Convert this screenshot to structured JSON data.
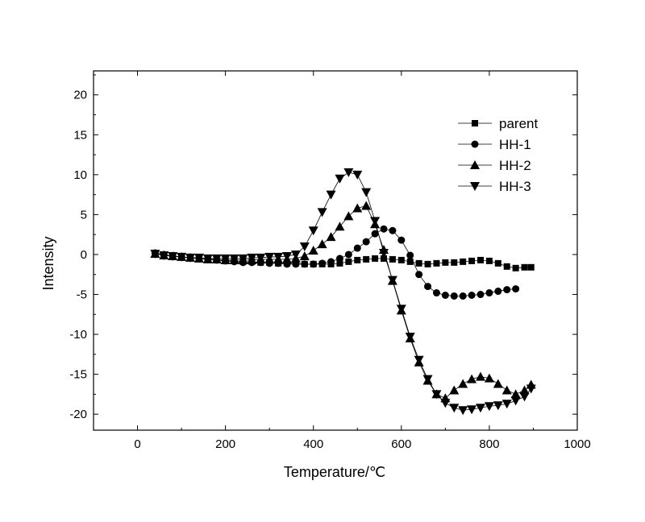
{
  "chart_data": {
    "type": "line",
    "title": "",
    "xlabel": "Temperature/℃",
    "ylabel": "Intensity",
    "xlim": [
      -100,
      1000
    ],
    "ylim": [
      -22,
      23
    ],
    "xticks": [
      0,
      200,
      400,
      600,
      800,
      1000
    ],
    "yticks": [
      -20,
      -15,
      -10,
      -5,
      0,
      5,
      10,
      15,
      20
    ],
    "xtick_labels": [
      "0",
      "200",
      "400",
      "600",
      "800",
      "1000"
    ],
    "ytick_labels": [
      "-20",
      "-15",
      "-10",
      "-5",
      "0",
      "5",
      "10",
      "15",
      "20"
    ],
    "grid": false,
    "legend_position": "top-right",
    "series": [
      {
        "name": "parent",
        "marker": "square",
        "x": [
          40,
          60,
          80,
          100,
          120,
          140,
          160,
          180,
          200,
          220,
          240,
          260,
          280,
          300,
          320,
          340,
          360,
          380,
          400,
          420,
          440,
          460,
          480,
          500,
          520,
          540,
          560,
          580,
          600,
          620,
          640,
          660,
          680,
          700,
          720,
          740,
          760,
          780,
          800,
          820,
          840,
          860,
          880,
          895
        ],
        "y": [
          0.1,
          -0.1,
          -0.2,
          -0.3,
          -0.4,
          -0.5,
          -0.6,
          -0.7,
          -0.8,
          -0.8,
          -0.9,
          -0.9,
          -1.0,
          -1.0,
          -1.1,
          -1.1,
          -1.1,
          -1.2,
          -1.2,
          -1.2,
          -1.2,
          -1.1,
          -0.9,
          -0.7,
          -0.6,
          -0.5,
          -0.5,
          -0.6,
          -0.7,
          -0.9,
          -1.1,
          -1.2,
          -1.1,
          -1.0,
          -1.0,
          -0.9,
          -0.8,
          -0.7,
          -0.8,
          -1.1,
          -1.5,
          -1.7,
          -1.6,
          -1.6
        ]
      },
      {
        "name": "HH-1",
        "marker": "circle",
        "x": [
          40,
          60,
          80,
          100,
          120,
          140,
          160,
          180,
          200,
          220,
          240,
          260,
          280,
          300,
          320,
          340,
          360,
          380,
          400,
          420,
          440,
          460,
          480,
          500,
          520,
          540,
          560,
          580,
          600,
          620,
          640,
          660,
          680,
          700,
          720,
          740,
          760,
          780,
          800,
          820,
          840,
          860
        ],
        "y": [
          0.2,
          0.0,
          -0.2,
          -0.3,
          -0.4,
          -0.5,
          -0.6,
          -0.7,
          -0.8,
          -0.9,
          -1.0,
          -1.0,
          -1.0,
          -1.1,
          -1.1,
          -1.2,
          -1.2,
          -1.2,
          -1.2,
          -1.1,
          -0.9,
          -0.5,
          0.0,
          0.8,
          1.6,
          2.6,
          3.2,
          3.0,
          1.8,
          -0.1,
          -2.5,
          -4.0,
          -4.8,
          -5.1,
          -5.2,
          -5.2,
          -5.1,
          -5.0,
          -4.8,
          -4.6,
          -4.4,
          -4.3
        ]
      },
      {
        "name": "HH-2",
        "marker": "triangle-up",
        "x": [
          40,
          60,
          80,
          100,
          120,
          140,
          160,
          180,
          200,
          220,
          240,
          260,
          280,
          300,
          320,
          340,
          360,
          380,
          400,
          420,
          440,
          460,
          480,
          500,
          520,
          540,
          560,
          580,
          600,
          620,
          640,
          660,
          680,
          700,
          720,
          740,
          760,
          780,
          800,
          820,
          840,
          860,
          880,
          895
        ],
        "y": [
          0.1,
          -0.1,
          -0.2,
          -0.3,
          -0.4,
          -0.5,
          -0.6,
          -0.6,
          -0.7,
          -0.7,
          -0.7,
          -0.7,
          -0.6,
          -0.6,
          -0.6,
          -0.6,
          -0.5,
          -0.2,
          0.5,
          1.3,
          2.2,
          3.5,
          4.8,
          5.8,
          6.1,
          3.8,
          0.6,
          -3.3,
          -7.0,
          -10.5,
          -13.5,
          -15.8,
          -17.5,
          -18.0,
          -17.0,
          -16.2,
          -15.6,
          -15.3,
          -15.5,
          -16.2,
          -17.0,
          -17.5,
          -17.0,
          -16.3
        ]
      },
      {
        "name": "HH-3",
        "marker": "triangle-down",
        "x": [
          40,
          60,
          80,
          100,
          120,
          140,
          160,
          180,
          200,
          220,
          240,
          260,
          280,
          300,
          320,
          340,
          360,
          380,
          400,
          420,
          440,
          460,
          480,
          500,
          520,
          540,
          560,
          580,
          600,
          620,
          640,
          660,
          680,
          700,
          720,
          740,
          760,
          780,
          800,
          820,
          840,
          860,
          880,
          895
        ],
        "y": [
          0.1,
          -0.1,
          -0.2,
          -0.3,
          -0.4,
          -0.4,
          -0.5,
          -0.5,
          -0.5,
          -0.5,
          -0.5,
          -0.4,
          -0.4,
          -0.3,
          -0.3,
          -0.2,
          0.0,
          1.0,
          3.0,
          5.3,
          7.5,
          9.5,
          10.3,
          10.0,
          7.8,
          4.2,
          0.2,
          -3.2,
          -6.8,
          -10.3,
          -13.2,
          -15.6,
          -17.5,
          -18.6,
          -19.2,
          -19.5,
          -19.4,
          -19.2,
          -19.0,
          -18.9,
          -18.7,
          -18.3,
          -17.8,
          -16.8
        ]
      }
    ]
  }
}
